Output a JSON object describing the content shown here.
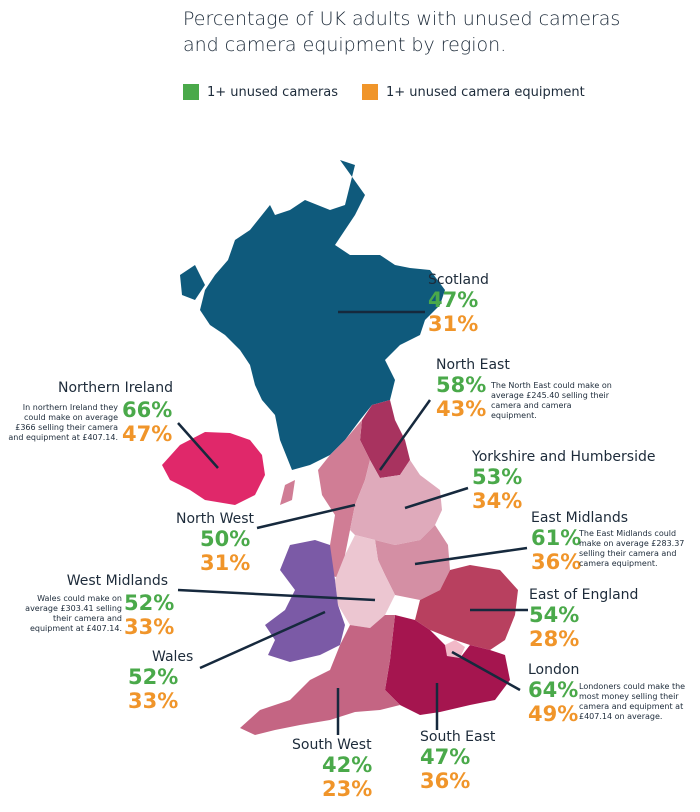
{
  "title_line1": "Percentage of UK adults with unused cameras",
  "title_line2": "and camera equipment by region.",
  "legend": [
    {
      "label": "1+ unused cameras",
      "color": "#4aa94a"
    },
    {
      "label": "1+ unused camera equipment",
      "color": "#f0952a"
    }
  ],
  "regions": {
    "scotland": {
      "name": "Scotland",
      "cameras": "47%",
      "equipment": "31%",
      "color": "#0f5a7c"
    },
    "north_east": {
      "name": "North East",
      "cameras": "58%",
      "equipment": "43%",
      "note": "The North East could make on average £245.40 selling their camera and camera equipment.",
      "color": "#a8335f"
    },
    "northern_ireland": {
      "name": "Northern Ireland",
      "cameras": "66%",
      "equipment": "47%",
      "note": "In northern Ireland they could make on average £366 selling their camera and equipment at £407.14.",
      "color": "#e0286a"
    },
    "yorkshire": {
      "name": "Yorkshire and Humberside",
      "cameras": "53%",
      "equipment": "34%",
      "color": "#dfaabb"
    },
    "north_west": {
      "name": "North West",
      "cameras": "50%",
      "equipment": "31%",
      "color": "#d07d95"
    },
    "east_midlands": {
      "name": "East Midlands",
      "cameras": "61%",
      "equipment": "36%",
      "note": "The East Midlands could make on average £283.37 selling their camera and camera equipment.",
      "color": "#d48fa4"
    },
    "west_midlands": {
      "name": "West Midlands",
      "cameras": "52%",
      "equipment": "33%",
      "note": "Wales could make on average £303.41 selling their camera and equipment at £407.14.",
      "color": "#ecc6d1"
    },
    "east_of_england": {
      "name": "East of England",
      "cameras": "54%",
      "equipment": "28%",
      "color": "#b8405f"
    },
    "wales": {
      "name": "Wales",
      "cameras": "52%",
      "equipment": "33%",
      "color": "#7b5aa6"
    },
    "london": {
      "name": "London",
      "cameras": "64%",
      "equipment": "49%",
      "note": "Londoners could make the most money selling  their camera and equipment at £407.14 on average.",
      "color": "#f2b9c8"
    },
    "south_west": {
      "name": "South West",
      "cameras": "42%",
      "equipment": "23%",
      "color": "#c46583"
    },
    "south_east": {
      "name": "South East",
      "cameras": "47%",
      "equipment": "36%",
      "color": "#a5154f"
    }
  }
}
